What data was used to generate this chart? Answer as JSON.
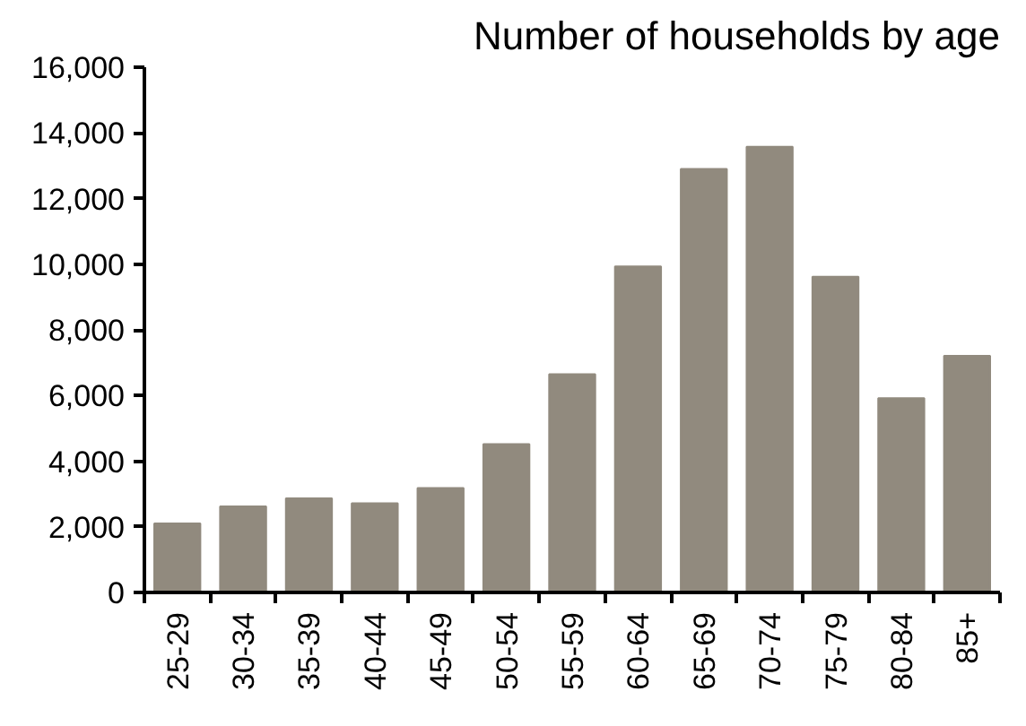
{
  "chart_data": {
    "type": "bar",
    "title": "Number of households by age",
    "categories": [
      "25-29",
      "30-34",
      "35-39",
      "40-44",
      "45-49",
      "50-54",
      "55-59",
      "60-64",
      "65-69",
      "70-74",
      "75-79",
      "80-84",
      "85+"
    ],
    "values": [
      2100,
      2620,
      2870,
      2720,
      3180,
      4520,
      6650,
      9930,
      12900,
      13580,
      9620,
      5920,
      7210
    ],
    "color": "#918a7e",
    "ylim": [
      0,
      16000
    ],
    "yticks": [
      0,
      {
        "value": 2000,
        "label": "2,000"
      },
      {
        "value": 4000,
        "label": "4,000"
      },
      {
        "value": 6000,
        "label": "6,000"
      },
      {
        "value": 8000,
        "label": "8,000"
      },
      {
        "value": 10000,
        "label": "10,000"
      },
      {
        "value": 12000,
        "label": "12,000"
      },
      {
        "value": 14000,
        "label": "14,000"
      },
      {
        "value": 16000,
        "label": "16,000"
      }
    ],
    "grid": false
  }
}
